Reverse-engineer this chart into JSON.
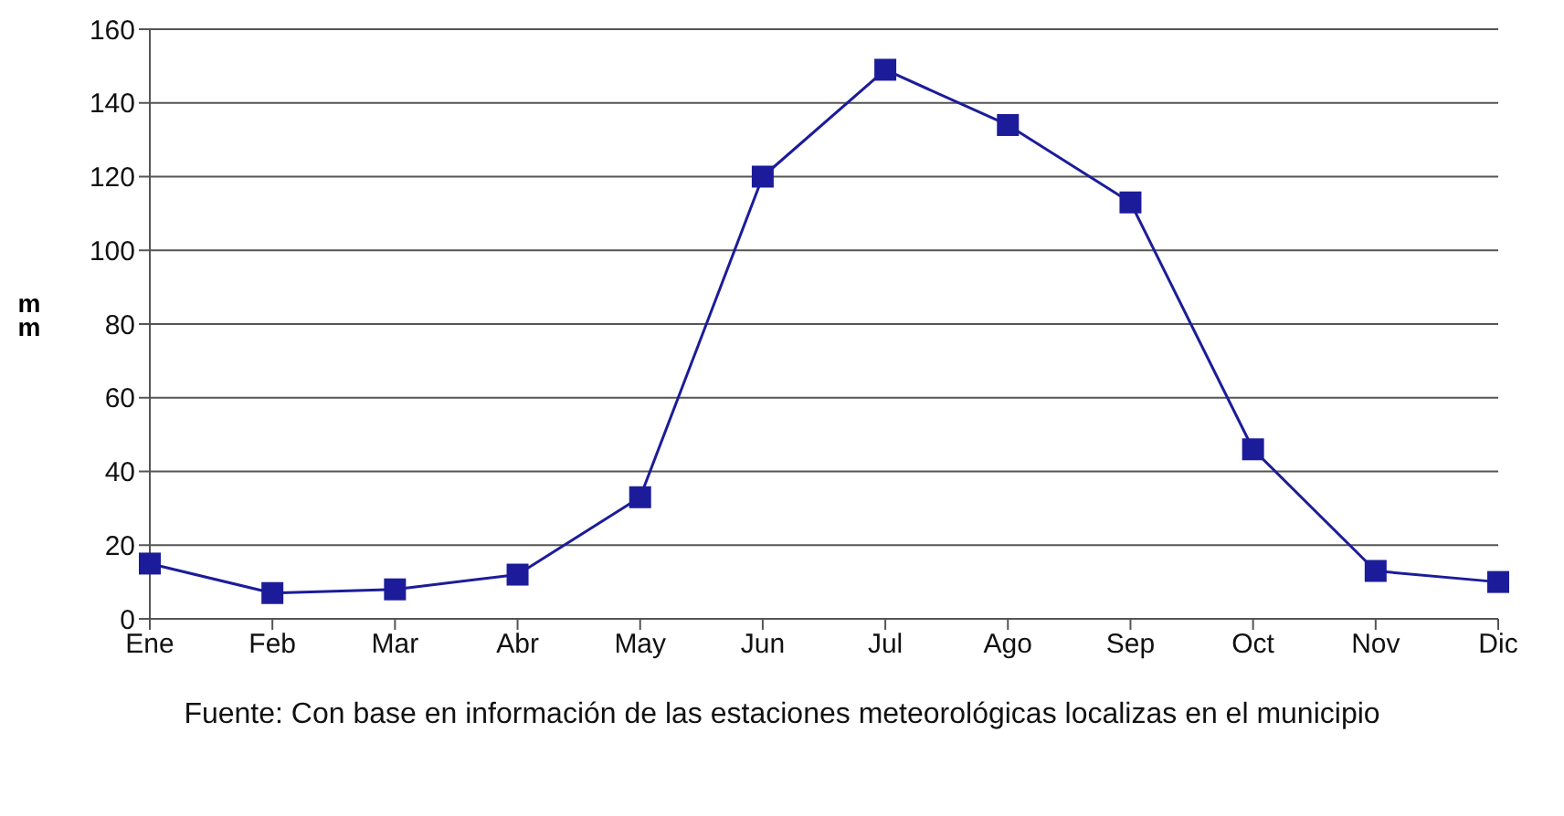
{
  "chart_data": {
    "type": "line",
    "ylabel": "mm",
    "categories": [
      "Ene",
      "Feb",
      "Mar",
      "Abr",
      "May",
      "Jun",
      "Jul",
      "Ago",
      "Sep",
      "Oct",
      "Nov",
      "Dic"
    ],
    "series": [
      {
        "color": "#1c1c9a",
        "values": [
          15,
          7,
          8,
          12,
          33,
          120,
          149,
          134,
          113,
          46,
          13,
          10
        ]
      }
    ],
    "ylim": [
      0,
      160
    ],
    "yticks": [
      0,
      20,
      40,
      60,
      80,
      100,
      120,
      140,
      160
    ],
    "grid": "y",
    "marker": "square",
    "line_style": "solid",
    "legend": false,
    "annotations": [
      "Fuente: Con base en información de las estaciones meteorológicas localizas en el municipio"
    ]
  }
}
